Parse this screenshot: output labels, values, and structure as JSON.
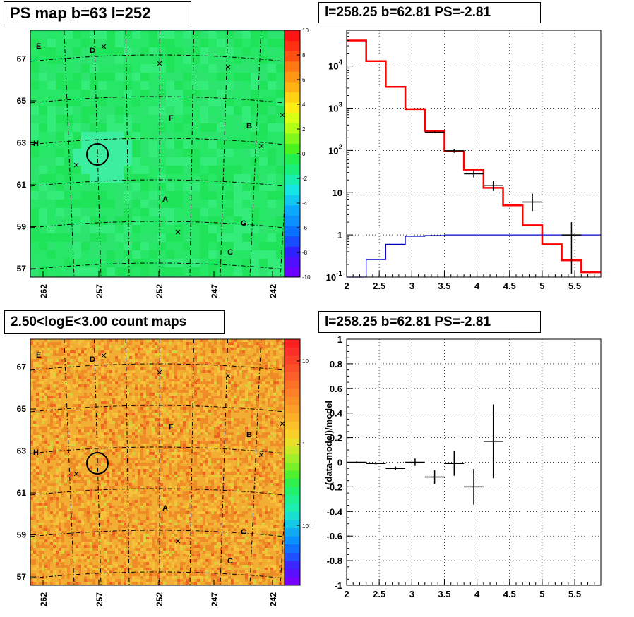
{
  "panels": {
    "ps_map": {
      "title": "PS map b=63 l=252"
    },
    "spectrum": {
      "title": "l=258.25 b=62.81 PS=-2.81"
    },
    "count_map": {
      "title": "2.50<logE<3.00 count maps"
    },
    "residual": {
      "title": "l=258.25 b=62.81 PS=-2.81"
    }
  },
  "chart_data": [
    {
      "id": "ps_map",
      "type": "heatmap",
      "title": "PS map b=63 l=252",
      "x_ticks": [
        "262",
        "257",
        "252",
        "247",
        "242"
      ],
      "y_ticks": [
        "57",
        "59",
        "61",
        "63",
        "65",
        "67"
      ],
      "colorbar_ticks": [
        "10",
        "8",
        "6",
        "4",
        "2",
        "0",
        "-2",
        "-4",
        "-6",
        "-8",
        "-10"
      ],
      "zlim": [
        -10,
        10
      ],
      "labels": [
        "E",
        "D",
        "F",
        "B",
        "H",
        "A",
        "G",
        "C"
      ],
      "colors": {
        "field": "#22e35a",
        "field_light": "#3df08a"
      }
    },
    {
      "id": "spectrum",
      "type": "line",
      "title": "l=258.25 b=62.81 PS=-2.81",
      "xlim": [
        2,
        5.9
      ],
      "ylim": [
        0.1,
        70000
      ],
      "ylog": true,
      "x_ticks": [
        "2",
        "2.5",
        "3",
        "3.5",
        "4",
        "4.5",
        "5",
        "5.5"
      ],
      "y_ticks": [
        "10^-1",
        "1",
        "10",
        "10^2",
        "10^3",
        "10^4"
      ],
      "grid": true,
      "series": [
        {
          "kind": "step",
          "color": "#ff0000",
          "edges": [
            2.0,
            2.3,
            2.6,
            2.9,
            3.2,
            3.5,
            3.8,
            4.1,
            4.4,
            4.7,
            5.0,
            5.3,
            5.6,
            5.9
          ],
          "values": [
            40000,
            13000,
            3200,
            950,
            290,
            95,
            35,
            13,
            5,
            1.7,
            0.6,
            0.25,
            0.13
          ]
        },
        {
          "kind": "step",
          "color": "#0000cc",
          "edges": [
            2.0,
            2.3,
            2.6,
            2.9,
            3.2,
            3.5,
            3.8,
            4.1,
            4.4,
            4.7,
            5.0,
            5.3,
            5.6,
            5.9
          ],
          "values": [
            0.07,
            0.26,
            0.6,
            0.93,
            0.97,
            1.0,
            1.0,
            1.0,
            1.0,
            1.0,
            1.0,
            1.0,
            1.0
          ]
        },
        {
          "kind": "errorbars",
          "color": "#000000",
          "points": [
            {
              "x": 3.35,
              "y": 270,
              "xerr": 0.15,
              "ylo": 255,
              "yhi": 285
            },
            {
              "x": 3.65,
              "y": 98,
              "xerr": 0.15,
              "ylo": 88,
              "yhi": 108
            },
            {
              "x": 3.95,
              "y": 28,
              "xerr": 0.15,
              "ylo": 23,
              "yhi": 34
            },
            {
              "x": 4.25,
              "y": 15,
              "xerr": 0.15,
              "ylo": 11,
              "yhi": 19
            },
            {
              "x": 4.85,
              "y": 6,
              "xerr": 0.15,
              "ylo": 3.7,
              "yhi": 9.5
            },
            {
              "x": 5.45,
              "y": 1,
              "xerr": 0.15,
              "ylo": 0.12,
              "yhi": 2
            }
          ]
        }
      ]
    },
    {
      "id": "count_map",
      "type": "heatmap",
      "title": "2.50<logE<3.00 count maps",
      "x_ticks": [
        "262",
        "257",
        "252",
        "247",
        "242"
      ],
      "y_ticks": [
        "57",
        "59",
        "61",
        "63",
        "65",
        "67"
      ],
      "colorbar_ticks": [
        "10",
        "1",
        "10^-1"
      ],
      "zlog": true,
      "labels": [
        "E",
        "D",
        "F",
        "B",
        "H",
        "A",
        "G",
        "C"
      ],
      "colors": {
        "field": "#f0a830",
        "hot": "#f05a1e"
      }
    },
    {
      "id": "residual",
      "type": "scatter",
      "title": "l=258.25 b=62.81 PS=-2.81",
      "ylabel": "(data-model)/model",
      "xlim": [
        2,
        5.9
      ],
      "ylim": [
        -1,
        1
      ],
      "x_ticks": [
        "2",
        "2.5",
        "3",
        "3.5",
        "4",
        "4.5",
        "5",
        "5.5"
      ],
      "y_ticks": [
        "-1",
        "-0.8",
        "-0.6",
        "-0.4",
        "-0.2",
        "0",
        "0.2",
        "0.4",
        "0.6",
        "0.8",
        "1"
      ],
      "grid": true,
      "points": [
        {
          "x": 2.15,
          "y": 0.0,
          "xerr": 0.15,
          "err": 0.006
        },
        {
          "x": 2.45,
          "y": -0.01,
          "xerr": 0.15,
          "err": 0.008
        },
        {
          "x": 2.75,
          "y": -0.05,
          "xerr": 0.15,
          "err": 0.015
        },
        {
          "x": 3.05,
          "y": 0.0,
          "xerr": 0.15,
          "err": 0.03
        },
        {
          "x": 3.35,
          "y": -0.12,
          "xerr": 0.15,
          "err": 0.055
        },
        {
          "x": 3.65,
          "y": -0.01,
          "xerr": 0.15,
          "err": 0.1
        },
        {
          "x": 3.95,
          "y": -0.2,
          "xerr": 0.15,
          "err": 0.145
        },
        {
          "x": 4.25,
          "y": 0.17,
          "xerr": 0.15,
          "err": 0.3
        }
      ]
    }
  ]
}
